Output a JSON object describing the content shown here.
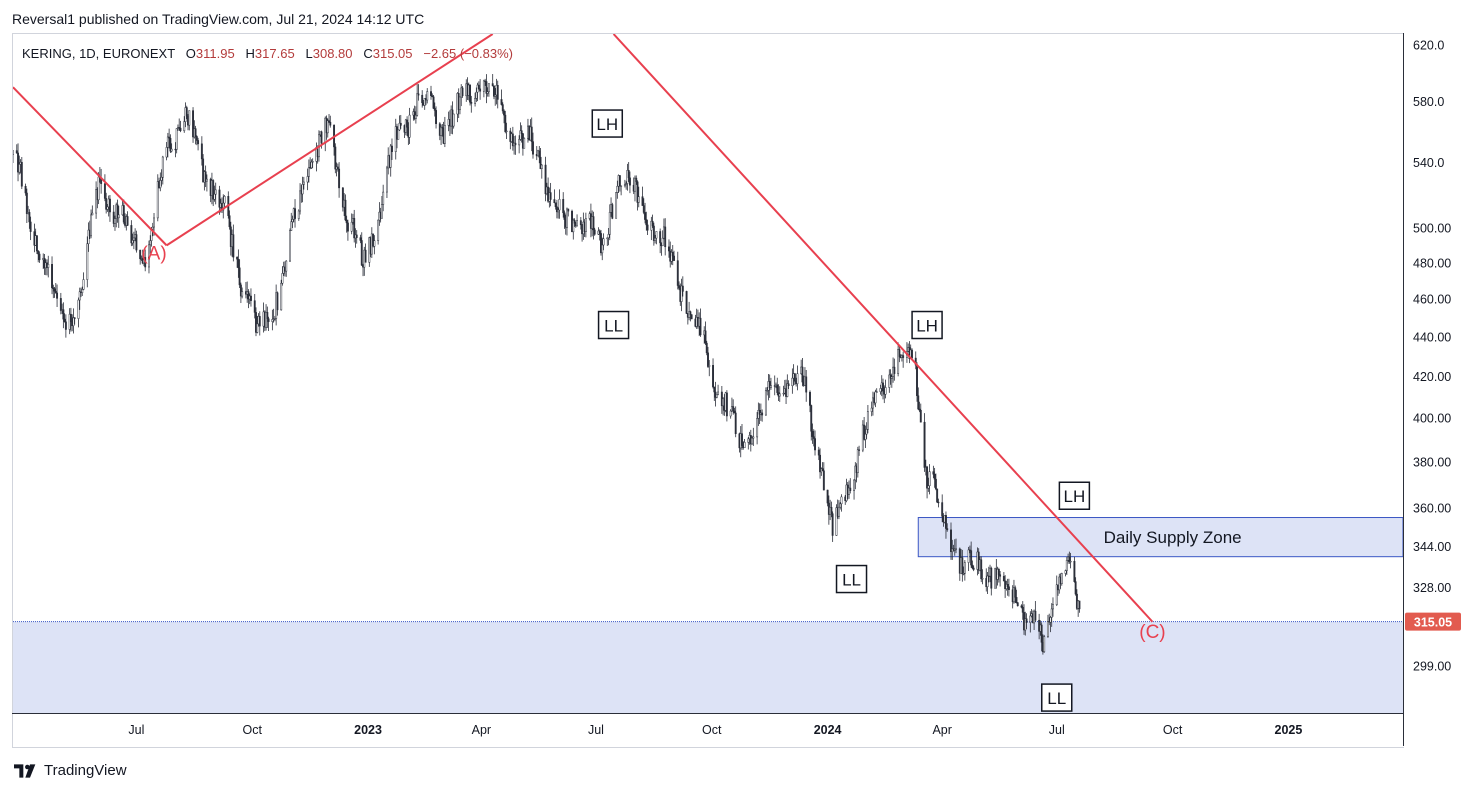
{
  "caption": "Reversal1 published on TradingView.com, Jul 21, 2024 14:12 UTC",
  "legend": {
    "symbol": "KERING, 1D, EURONEXT",
    "open_label": "O",
    "open": "311.95",
    "high_label": "H",
    "high": "317.65",
    "low_label": "L",
    "low": "308.80",
    "close_label": "C",
    "close": "315.05",
    "change": "−2.65 (−0.83%)"
  },
  "footer": {
    "brand": "TradingView",
    "logo_icon": "tradingview-logo-icon"
  },
  "colors": {
    "trendline": "#e8404f",
    "zone_fill": "#dde3f6",
    "zone_border": "#3b57c4",
    "candle": "#2a2e39",
    "price_badge": "#e25b4f"
  },
  "chart_data": {
    "type": "candlestick",
    "title": "",
    "xlabel": "",
    "ylabel": "",
    "yscale": "log",
    "ylim": [
      283,
      628
    ],
    "xlim": [
      "2022-03-25",
      "2025-04-02"
    ],
    "grid": false,
    "y_ticks": [
      "620.0",
      "580.0",
      "540.0",
      "500.00",
      "480.00",
      "460.00",
      "440.00",
      "420.00",
      "400.00",
      "380.00",
      "360.00",
      "344.00",
      "328.00",
      "315.05",
      "299.00"
    ],
    "x_ticks": [
      {
        "label": "Jul",
        "date": "2022-07-01",
        "bold": false
      },
      {
        "label": "Oct",
        "date": "2022-10-01",
        "bold": false
      },
      {
        "label": "2023",
        "date": "2023-01-01",
        "bold": true
      },
      {
        "label": "Apr",
        "date": "2023-04-01",
        "bold": false
      },
      {
        "label": "Jul",
        "date": "2023-07-01",
        "bold": false
      },
      {
        "label": "Oct",
        "date": "2023-10-01",
        "bold": false
      },
      {
        "label": "2024",
        "date": "2024-01-01",
        "bold": true
      },
      {
        "label": "Apr",
        "date": "2024-04-01",
        "bold": false
      },
      {
        "label": "Jul",
        "date": "2024-07-01",
        "bold": false
      },
      {
        "label": "Oct",
        "date": "2024-10-01",
        "bold": false
      },
      {
        "label": "2025",
        "date": "2025-01-01",
        "bold": true
      }
    ],
    "price_path": [
      {
        "date": "2022-03-25",
        "price": 545
      },
      {
        "date": "2022-04-10",
        "price": 500
      },
      {
        "date": "2022-05-05",
        "price": 445
      },
      {
        "date": "2022-05-20",
        "price": 470
      },
      {
        "date": "2022-06-01",
        "price": 530
      },
      {
        "date": "2022-06-15",
        "price": 505
      },
      {
        "date": "2022-07-01",
        "price": 495
      },
      {
        "date": "2022-07-10",
        "price": 480
      },
      {
        "date": "2022-07-25",
        "price": 555
      },
      {
        "date": "2022-08-10",
        "price": 565
      },
      {
        "date": "2022-08-25",
        "price": 535
      },
      {
        "date": "2022-09-10",
        "price": 505
      },
      {
        "date": "2022-10-05",
        "price": 440
      },
      {
        "date": "2022-10-25",
        "price": 470
      },
      {
        "date": "2022-11-15",
        "price": 540
      },
      {
        "date": "2022-12-01",
        "price": 560
      },
      {
        "date": "2022-12-10",
        "price": 525
      },
      {
        "date": "2022-12-28",
        "price": 475
      },
      {
        "date": "2023-01-20",
        "price": 545
      },
      {
        "date": "2023-02-10",
        "price": 585
      },
      {
        "date": "2023-02-28",
        "price": 565
      },
      {
        "date": "2023-03-20",
        "price": 580
      },
      {
        "date": "2023-04-01",
        "price": 600
      },
      {
        "date": "2023-04-20",
        "price": 565
      },
      {
        "date": "2023-05-15",
        "price": 545
      },
      {
        "date": "2023-06-05",
        "price": 500
      },
      {
        "date": "2023-06-25",
        "price": 510
      },
      {
        "date": "2023-07-05",
        "price": 485
      },
      {
        "date": "2023-07-20",
        "price": 535
      },
      {
        "date": "2023-08-10",
        "price": 510
      },
      {
        "date": "2023-09-05",
        "price": 470
      },
      {
        "date": "2023-10-01",
        "price": 425
      },
      {
        "date": "2023-10-25",
        "price": 385
      },
      {
        "date": "2023-11-15",
        "price": 410
      },
      {
        "date": "2023-12-10",
        "price": 420
      },
      {
        "date": "2023-12-28",
        "price": 375
      },
      {
        "date": "2024-01-05",
        "price": 350
      },
      {
        "date": "2024-01-25",
        "price": 385
      },
      {
        "date": "2024-02-10",
        "price": 410
      },
      {
        "date": "2024-02-25",
        "price": 430
      },
      {
        "date": "2024-03-10",
        "price": 430
      },
      {
        "date": "2024-03-20",
        "price": 375
      },
      {
        "date": "2024-04-05",
        "price": 350
      },
      {
        "date": "2024-04-20",
        "price": 335
      },
      {
        "date": "2024-05-10",
        "price": 335
      },
      {
        "date": "2024-05-25",
        "price": 325
      },
      {
        "date": "2024-06-10",
        "price": 318
      },
      {
        "date": "2024-06-20",
        "price": 303
      },
      {
        "date": "2024-07-01",
        "price": 330
      },
      {
        "date": "2024-07-10",
        "price": 336
      },
      {
        "date": "2024-07-19",
        "price": 315
      }
    ],
    "last_price": {
      "value": 315.05,
      "label": "315.05"
    },
    "annotations": [
      {
        "label": "(A)",
        "kind": "wave",
        "date": "2022-07-15",
        "price": 482
      },
      {
        "label": "(C)",
        "kind": "wave",
        "date": "2024-09-15",
        "price": 309
      },
      {
        "label": "LH",
        "kind": "box",
        "date": "2023-07-10",
        "price": 565
      },
      {
        "label": "LL",
        "kind": "box",
        "date": "2023-07-15",
        "price": 446
      },
      {
        "label": "LH",
        "kind": "box",
        "date": "2024-03-20",
        "price": 446
      },
      {
        "label": "LL",
        "kind": "box",
        "date": "2024-01-20",
        "price": 331
      },
      {
        "label": "LH",
        "kind": "box",
        "date": "2024-07-15",
        "price": 365
      },
      {
        "label": "LL",
        "kind": "box",
        "date": "2024-07-01",
        "price": 288
      }
    ],
    "zones": [
      {
        "label": "Daily Supply Zone",
        "from_date": "2024-03-13",
        "to_date": "2025-04-02",
        "low": 340,
        "high": 356
      },
      {
        "label": "",
        "from_date": "2022-03-25",
        "to_date": "2025-04-02",
        "low": 283,
        "high": 315.05
      }
    ],
    "trendlines": [
      {
        "from": {
          "date": "2022-03-25",
          "price": 590
        },
        "to": {
          "date": "2022-07-25",
          "price": 490
        }
      },
      {
        "from": {
          "date": "2022-07-25",
          "price": 490
        },
        "to": {
          "date": "2023-04-10",
          "price": 628
        }
      },
      {
        "from": {
          "date": "2023-07-15",
          "price": 628
        },
        "to": {
          "date": "2024-09-15",
          "price": 315
        }
      }
    ]
  }
}
